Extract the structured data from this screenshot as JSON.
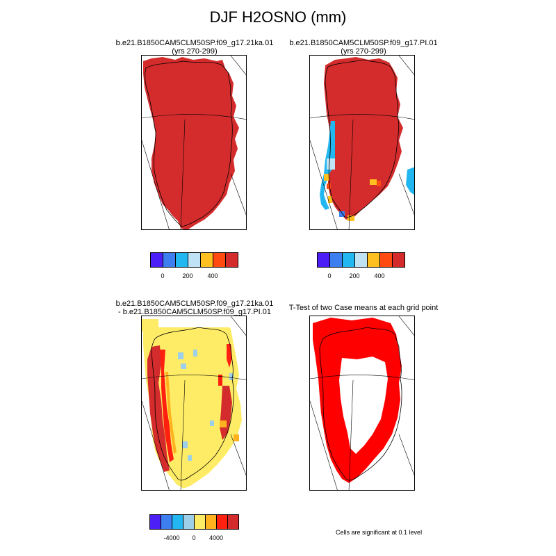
{
  "figure": {
    "title": "DJF H2OSNO (mm)",
    "note": "Cells are significant at 0.1 level"
  },
  "panels": [
    {
      "id": "case1",
      "title_line1": "b.e21.B1850CAM5CLM50SP.f09_g17.21ka.01",
      "title_line2": "(yrs 270-299)"
    },
    {
      "id": "case2",
      "title_line1": "b.e21.B1850CAM5CLM50SP.f09_g17.PI.01",
      "title_line2": "(yrs 270-299)"
    },
    {
      "id": "diff",
      "title_line1": "b.e21.B1850CAM5CLM50SP.f09_g17.21ka.01",
      "title_line2": "- b.e21.B1850CAM5CLM50SP.f09_g17.PI.01"
    },
    {
      "id": "ttest",
      "title_line1": "T-Test of two Case means at each grid point",
      "title_line2": ""
    }
  ],
  "colorbars": {
    "abs": {
      "colors": [
        "#4b1ff5",
        "#3d7ff0",
        "#22b7f0",
        "#bfe3f5",
        "#ffc020",
        "#ff4a12",
        "#d42c2c"
      ],
      "labels": [
        "0",
        "200",
        "400"
      ]
    },
    "diff": {
      "colors": [
        "#4b1ff5",
        "#3d7ff0",
        "#22b7f0",
        "#9ecfe8",
        "#ffec66",
        "#ffb21e",
        "#ff2010",
        "#d42c2c"
      ],
      "labels": [
        "-4000",
        "0",
        "4000"
      ]
    }
  },
  "chart_data": [
    {
      "type": "heatmap",
      "title": "b.e21.B1850CAM5CLM50SP.f09_g17.21ka.01",
      "subtitle": "(yrs 270-299)",
      "variable": "DJF H2OSNO (mm)",
      "dominant_class": "> 500",
      "description_classes": [
        "> 500"
      ]
    },
    {
      "type": "heatmap",
      "title": "b.e21.B1850CAM5CLM50SP.f09_g17.PI.01",
      "subtitle": "(yrs 270-299)",
      "variable": "DJF H2OSNO (mm)",
      "dominant_class": "> 500",
      "description_classes": [
        "> 500",
        "0-100",
        "100-200",
        "300-400"
      ]
    },
    {
      "type": "heatmap",
      "title": "b.e21.B1850CAM5CLM50SP.f09_g17.21ka.01 - b.e21.B1850CAM5CLM50SP.f09_g17.PI.01",
      "variable": "DJF H2OSNO (mm) difference",
      "dominant_class": "0 to 2000",
      "description_classes": [
        "0 to 2000",
        "> 6000",
        "-2000 to 0"
      ]
    },
    {
      "type": "heatmap",
      "title": "T-Test of two Case means at each grid point",
      "variable": "significance",
      "significance_level": 0.1
    }
  ]
}
